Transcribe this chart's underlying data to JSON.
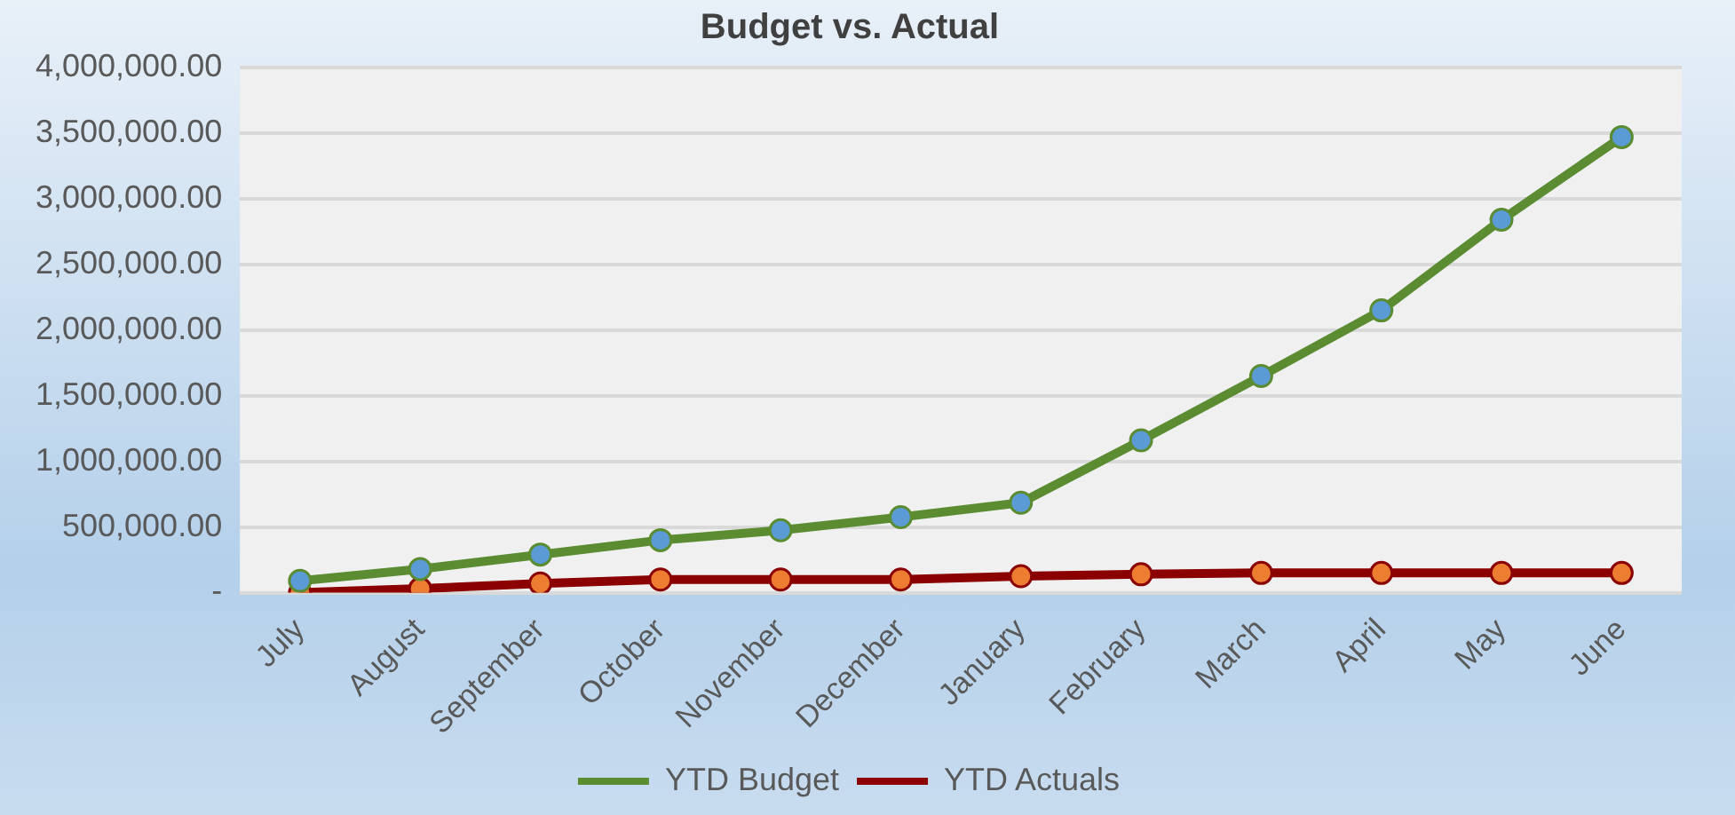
{
  "chart_data": {
    "type": "line",
    "title": "Budget vs. Actual",
    "categories": [
      "July",
      "August",
      "September",
      "October",
      "November",
      "December",
      "January",
      "February",
      "March",
      "April",
      "May",
      "June"
    ],
    "series": [
      {
        "name": "YTD Budget",
        "color": "#5b8c32",
        "values": [
          90000,
          180000,
          290000,
          400000,
          475000,
          575000,
          685000,
          1160000,
          1650000,
          2150000,
          2840000,
          3470000
        ]
      },
      {
        "name": "YTD Actuals",
        "color": "#8b0000",
        "values": [
          0,
          30000,
          70000,
          100000,
          100000,
          100000,
          125000,
          140000,
          150000,
          150000,
          150000,
          150000
        ]
      }
    ],
    "ylim": [
      0,
      4000000
    ],
    "yticks": [
      {
        "value": 0,
        "label": "-"
      },
      {
        "value": 500000,
        "label": "500,000.00"
      },
      {
        "value": 1000000,
        "label": "1,000,000.00"
      },
      {
        "value": 1500000,
        "label": "1,500,000.00"
      },
      {
        "value": 2000000,
        "label": "2,000,000.00"
      },
      {
        "value": 2500000,
        "label": "2,500,000.00"
      },
      {
        "value": 3000000,
        "label": "3,000,000.00"
      },
      {
        "value": 3500000,
        "label": "3,500,000.00"
      },
      {
        "value": 4000000,
        "label": "4,000,000.00"
      }
    ],
    "grid": "y",
    "legend": "bottom",
    "marker": "circle",
    "line_style": "solid"
  }
}
